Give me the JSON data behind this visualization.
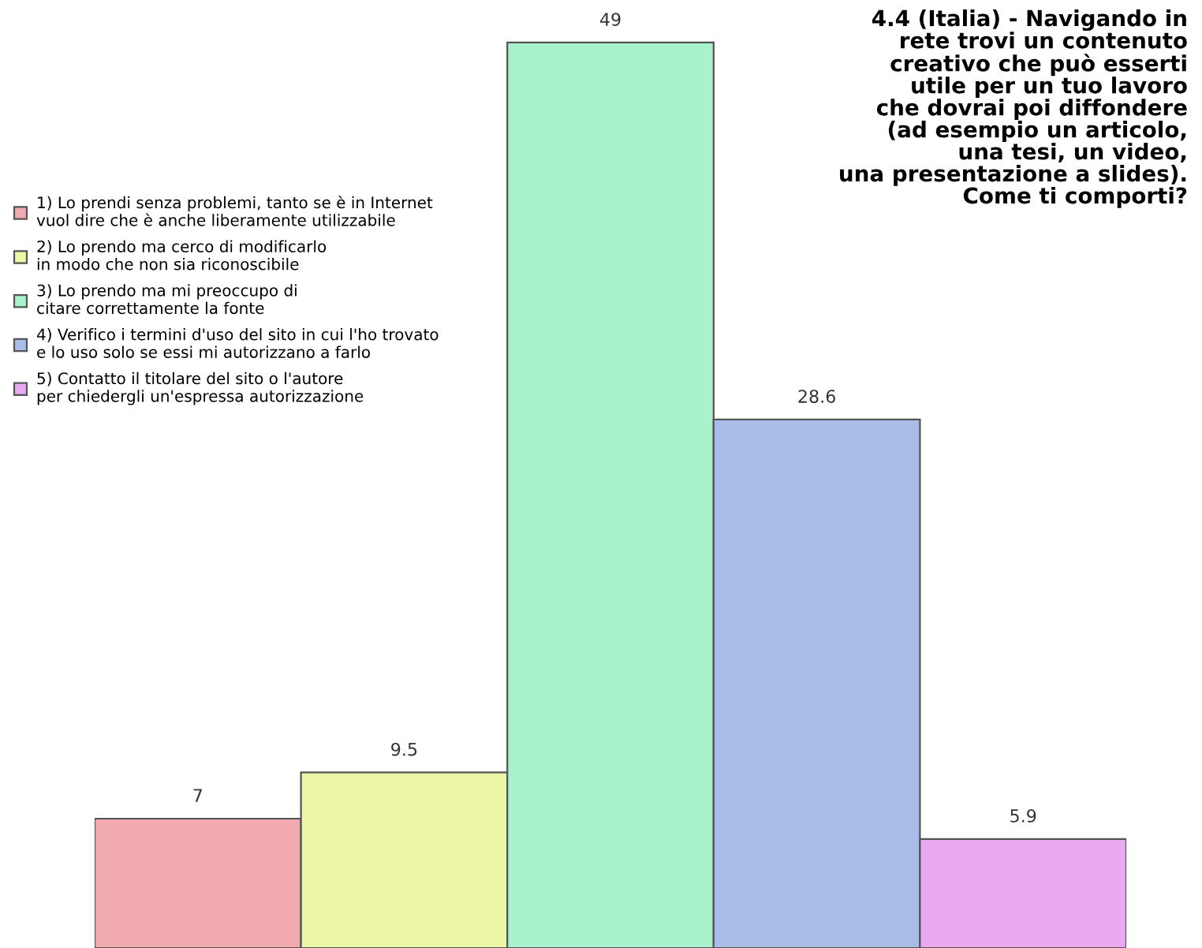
{
  "chart_data": {
    "type": "bar",
    "title": "4.4 (Italia) - Navigando in\nrete trovi un contenuto\ncreativo che può esserti\nutile per un tuo lavoro\nche dovrai poi diffondere\n(ad esempio un articolo,\nuna tesi, un video,\nuna presentazione a slides).\nCome ti comporti?",
    "categories": [
      null,
      null,
      null,
      null,
      null
    ],
    "series": [
      {
        "name": "1) Lo prendi senza problemi, tanto se è in Internet\nvuol dire che è anche liberamente utilizzabile",
        "color": "#f0aab0",
        "values": [
          7,
          null,
          null,
          null,
          null
        ]
      },
      {
        "name": "2) Lo prendo ma cerco di modificarlo\nin modo che non sia riconoscibile",
        "color": "#eef7a8",
        "values": [
          null,
          9.5,
          null,
          null,
          null
        ]
      },
      {
        "name": "3) Lo prendo ma mi preoccupo di\ncitare correttamente la fonte",
        "color": "#a8f2cc",
        "values": [
          null,
          null,
          49,
          null,
          null
        ]
      },
      {
        "name": "4) Verifico i termini d'uso del sito in cui l'ho trovato\ne lo uso solo se essi mi autorizzano a farlo",
        "color": "#aabde8",
        "values": [
          null,
          null,
          null,
          28.6,
          null
        ]
      },
      {
        "name": "5) Contatto il titolare del sito o l'autore\nper chiedergli un'espressa autorizzazione",
        "color": "#eaaaf2",
        "values": [
          null,
          null,
          null,
          null,
          5.9
        ]
      }
    ],
    "stacked": true,
    "data_labels": true,
    "legend": "left",
    "grid": false
  }
}
